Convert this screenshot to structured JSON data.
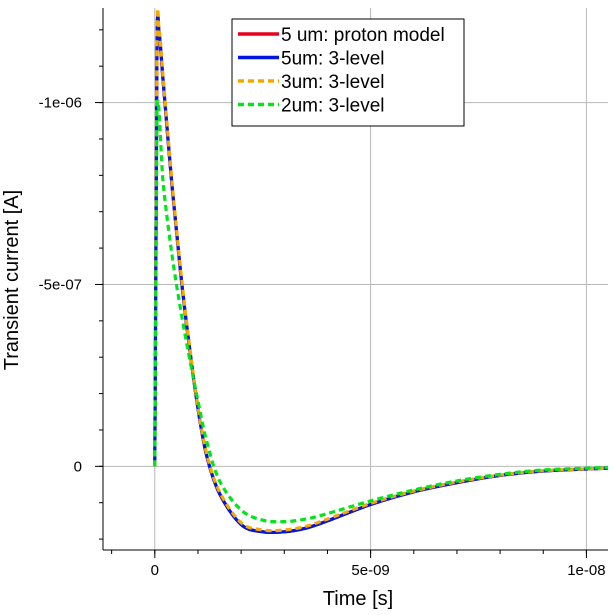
{
  "chart_data": {
    "type": "line",
    "title": "",
    "xlabel": "Time [s]",
    "ylabel": "Transient current [A]",
    "xlim": [
      -1.2e-09,
      1.05e-08
    ],
    "ylim": [
      2.3e-07,
      -1.26e-06
    ],
    "y_axis_inverted": true,
    "grid": true,
    "legend_position": "top-right",
    "x_ticks": [
      {
        "value": 0,
        "label": "0"
      },
      {
        "value": 5e-09,
        "label": "5e-09"
      },
      {
        "value": 1e-08,
        "label": "1e-08"
      }
    ],
    "y_ticks": [
      {
        "value": -1e-06,
        "label": "-1e-06"
      },
      {
        "value": -5e-07,
        "label": "-5e-07"
      },
      {
        "value": 0,
        "label": "0"
      }
    ],
    "series": [
      {
        "name": "5 um: proton model",
        "color": "#e8001c",
        "style": "solid",
        "x": [
          0,
          5e-11,
          1e-10,
          2e-10,
          4e-10,
          6e-10,
          8e-10,
          1e-09,
          1.2e-09,
          1.5e-09,
          2e-09,
          2.5e-09,
          3e-09,
          3.5e-09,
          4e-09,
          5e-09,
          6e-09,
          7e-09,
          8e-09,
          9e-09,
          1.05e-08
        ],
        "values": [
          0,
          -1.13e-06,
          -1.19e-06,
          -1.05e-06,
          -7.7e-07,
          -5.3e-07,
          -3.3e-07,
          -1.6e-07,
          -3e-08,
          7.5e-08,
          1.6e-07,
          1.8e-07,
          1.8e-07,
          1.7e-07,
          1.5e-07,
          1.05e-07,
          7e-08,
          4.5e-08,
          2.5e-08,
          1.3e-08,
          5e-09
        ]
      },
      {
        "name": "5um: 3-level",
        "color": "#0016e5",
        "style": "solid",
        "x": [
          0,
          5e-11,
          1e-10,
          2e-10,
          4e-10,
          6e-10,
          8e-10,
          1e-09,
          1.2e-09,
          1.5e-09,
          2e-09,
          2.5e-09,
          3e-09,
          3.5e-09,
          4e-09,
          5e-09,
          6e-09,
          7e-09,
          8e-09,
          9e-09,
          1.05e-08
        ],
        "values": [
          0,
          -1.13e-06,
          -1.19e-06,
          -1.05e-06,
          -7.7e-07,
          -5.3e-07,
          -3.3e-07,
          -1.6e-07,
          -3e-08,
          7.5e-08,
          1.6e-07,
          1.8e-07,
          1.8e-07,
          1.7e-07,
          1.5e-07,
          1.05e-07,
          7e-08,
          4.5e-08,
          2.5e-08,
          1.3e-08,
          5e-09
        ]
      },
      {
        "name": "3um: 3-level",
        "color": "#f5a800",
        "style": "dashed",
        "x": [
          0,
          5e-11,
          1e-10,
          2e-10,
          4e-10,
          6e-10,
          8e-10,
          1e-09,
          1.2e-09,
          1.5e-09,
          2e-09,
          2.5e-09,
          3e-09,
          3.5e-09,
          4e-09,
          5e-09,
          6e-09,
          7e-09,
          8e-09,
          9e-09,
          1.05e-08
        ],
        "values": [
          0,
          -1.15e-06,
          -1.2e-06,
          -1.06e-06,
          -7.8e-07,
          -5.4e-07,
          -3.35e-07,
          -1.65e-07,
          -3.5e-08,
          7e-08,
          1.55e-07,
          1.75e-07,
          1.75e-07,
          1.65e-07,
          1.45e-07,
          1.02e-07,
          6.8e-08,
          4.3e-08,
          2.4e-08,
          1.2e-08,
          5e-09
        ]
      },
      {
        "name": "2um: 3-level",
        "color": "#00e51c",
        "style": "dashed",
        "x": [
          0,
          5e-11,
          2e-10,
          4e-10,
          6e-10,
          8e-10,
          1e-09,
          1.2e-09,
          1.5e-09,
          2e-09,
          2.5e-09,
          3e-09,
          3.5e-09,
          4e-09,
          5e-09,
          6e-09,
          7e-09,
          8e-09,
          9e-09,
          1.05e-08
        ],
        "values": [
          0,
          -9.7e-07,
          -7.7e-07,
          -5.8e-07,
          -4.3e-07,
          -3e-07,
          -1.8e-07,
          -7e-08,
          4e-08,
          1.2e-07,
          1.48e-07,
          1.52e-07,
          1.45e-07,
          1.3e-07,
          9.5e-08,
          6.5e-08,
          4e-08,
          2.2e-08,
          1e-08,
          3e-09
        ]
      }
    ]
  }
}
